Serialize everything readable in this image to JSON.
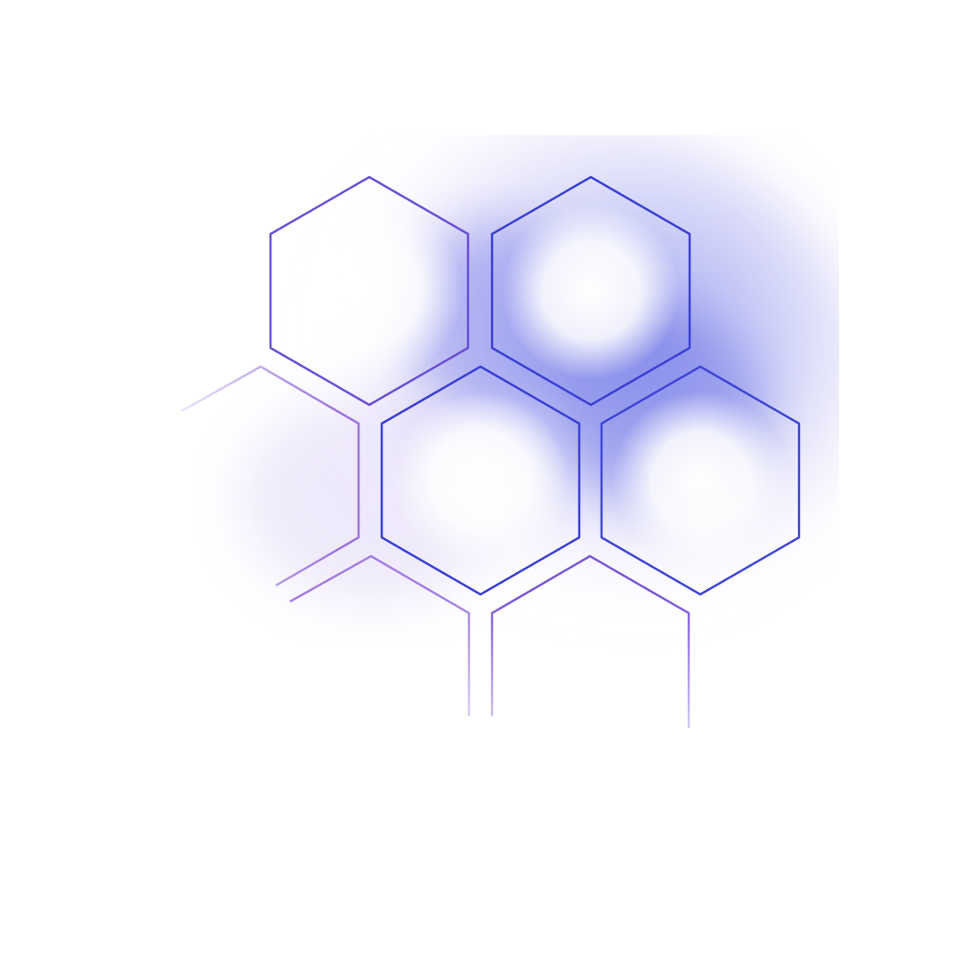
{
  "graphic": {
    "name": "hexagon-cluster",
    "colors": {
      "background": "#ffffff",
      "stroke_strong": "#3a3fd4",
      "stroke_violet": "#7a55d6",
      "stroke_fade": "#b28be6",
      "glow_blue": "#5b64e6",
      "glow_violet": "#b8a4ef",
      "inner_highlight": "#ffffff"
    },
    "hexagons": [
      {
        "id": "top-left",
        "row": 1,
        "col": 1,
        "emphasis": "medium"
      },
      {
        "id": "top-right",
        "row": 1,
        "col": 2,
        "emphasis": "strong"
      },
      {
        "id": "middle-left-partial",
        "row": 2,
        "col": 0,
        "emphasis": "faded"
      },
      {
        "id": "middle-center",
        "row": 2,
        "col": 1,
        "emphasis": "strong"
      },
      {
        "id": "middle-right",
        "row": 2,
        "col": 2,
        "emphasis": "strong"
      },
      {
        "id": "bottom-left-partial",
        "row": 3,
        "col": 1,
        "emphasis": "faded"
      },
      {
        "id": "bottom-right-partial",
        "row": 3,
        "col": 2,
        "emphasis": "faded"
      }
    ]
  }
}
